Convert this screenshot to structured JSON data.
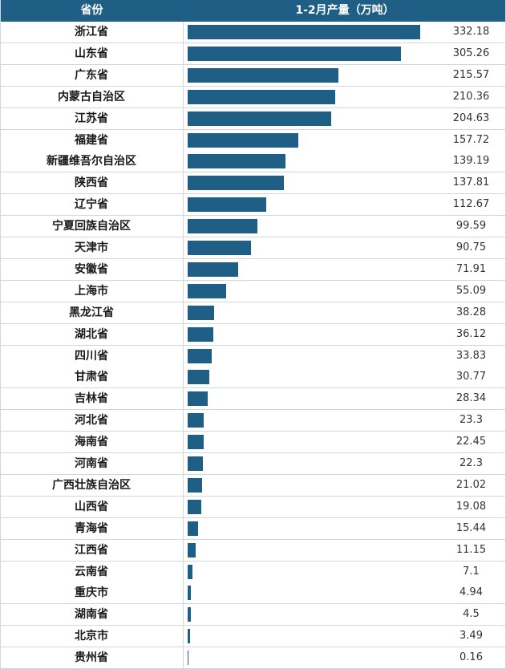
{
  "header": {
    "province_label": "省份",
    "value_label": "1-2月产量（万吨）"
  },
  "colors": {
    "header_bg": "#1f5f86",
    "bar": "#1f5f86"
  },
  "chart_data": {
    "type": "bar",
    "orientation": "horizontal",
    "title": "",
    "xlabel": "1-2月产量（万吨）",
    "ylabel": "省份",
    "xlim": [
      0,
      332.18
    ],
    "grid": false,
    "categories": [
      "浙江省",
      "山东省",
      "广东省",
      "内蒙古自治区",
      "江苏省",
      "福建省",
      "新疆维吾尔自治区",
      "陕西省",
      "辽宁省",
      "宁夏回族自治区",
      "天津市",
      "安徽省",
      "上海市",
      "黑龙江省",
      "湖北省",
      "四川省",
      "甘肃省",
      "吉林省",
      "河北省",
      "海南省",
      "河南省",
      "广西壮族自治区",
      "山西省",
      "青海省",
      "江西省",
      "云南省",
      "重庆市",
      "湖南省",
      "北京市",
      "贵州省"
    ],
    "values": [
      332.18,
      305.26,
      215.57,
      210.36,
      204.63,
      157.72,
      139.19,
      137.81,
      112.67,
      99.59,
      90.75,
      71.91,
      55.09,
      38.28,
      36.12,
      33.83,
      30.77,
      28.34,
      23.3,
      22.45,
      22.3,
      21.02,
      19.08,
      15.44,
      11.15,
      7.1,
      4.94,
      4.5,
      3.49,
      0.16
    ],
    "value_labels": [
      "332.18",
      "305.26",
      "215.57",
      "210.36",
      "204.63",
      "157.72",
      "139.19",
      "137.81",
      "112.67",
      "99.59",
      "90.75",
      "71.91",
      "55.09",
      "38.28",
      "36.12",
      "33.83",
      "30.77",
      "28.34",
      "23.3",
      "22.45",
      "22.3",
      "21.02",
      "19.08",
      "15.44",
      "11.15",
      "7.1",
      "4.94",
      "4.5",
      "3.49",
      "0.16"
    ]
  }
}
